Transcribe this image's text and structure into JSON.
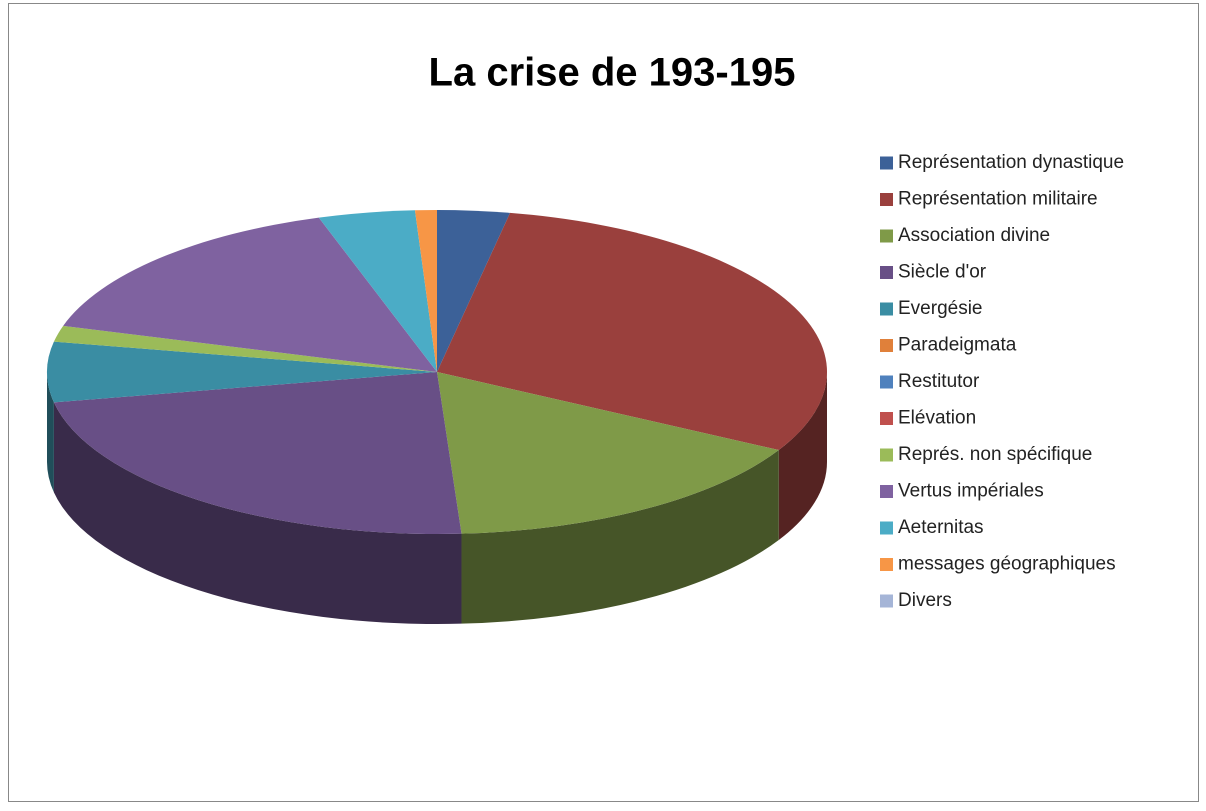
{
  "chart_data": {
    "type": "pie",
    "title": "La crise de 193-195",
    "categories": [
      "Représentation dynastique",
      "Représentation militaire",
      "Association divine",
      "Siècle d'or",
      "Evergésie",
      "Paradeigmata",
      "Restitutor",
      "Elévation",
      "Représ. non spécifique",
      "Vertus impériales",
      "Aeternitas",
      "messages géographiques",
      "Divers"
    ],
    "values": [
      3,
      30,
      16,
      23,
      6,
      0,
      0,
      0,
      1.6,
      15.5,
      4,
      0.9,
      0
    ],
    "colors": [
      "#3c6198",
      "#9a403d",
      "#7f9a48",
      "#684f86",
      "#3a8da3",
      "#e0803a",
      "#4f81bd",
      "#c0504d",
      "#9bbb59",
      "#7f62a0",
      "#4bacc6",
      "#f79646",
      "#a5b5d7"
    ],
    "legend": "right"
  }
}
